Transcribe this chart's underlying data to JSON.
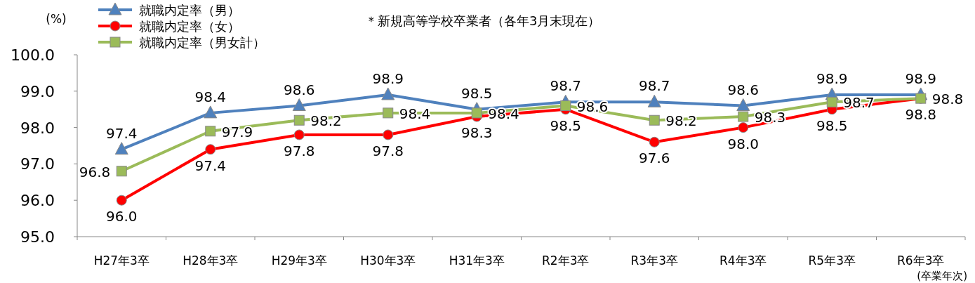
{
  "chart_data": {
    "type": "line",
    "ylabel": "(%)",
    "categories": [
      "H27年3卒",
      "H28年3卒",
      "H29年3卒",
      "H30年3卒",
      "H31年3卒",
      "R2年3卒",
      "R3年3卒",
      "R4年3卒",
      "R5年3卒",
      "R6年3卒"
    ],
    "series": [
      {
        "name": "就職内定率（男）",
        "color": "#4f81bd",
        "marker": "triangle",
        "values": [
          97.4,
          98.4,
          98.6,
          98.9,
          98.5,
          98.7,
          98.7,
          98.6,
          98.9,
          98.9
        ]
      },
      {
        "name": "就職内定率（女）",
        "color": "#ff0000",
        "marker": "circle",
        "values": [
          96.0,
          97.4,
          97.8,
          97.8,
          98.3,
          98.5,
          97.6,
          98.0,
          98.5,
          98.8
        ],
        "value_labels": [
          "96.0",
          "97.4",
          "97.8",
          "97.8",
          "98.3",
          "98.5",
          "97.6",
          "98.0",
          "98.5",
          "98.8"
        ]
      },
      {
        "name": "就職内定率（男女計）",
        "color": "#9bbb59",
        "marker": "square",
        "values": [
          96.8,
          97.9,
          98.2,
          98.4,
          98.4,
          98.6,
          98.2,
          98.3,
          98.7,
          98.8
        ]
      }
    ],
    "ylim": [
      95,
      100
    ],
    "yticks": [
      {
        "value": 95,
        "label": "95.0"
      },
      {
        "value": 96,
        "label": "96.0"
      },
      {
        "value": 97,
        "label": "97.0"
      },
      {
        "value": 98,
        "label": "98.0"
      },
      {
        "value": 99,
        "label": "99.0"
      },
      {
        "value": 100,
        "label": "100.0"
      }
    ],
    "data_labels": true,
    "grid": false,
    "legend": "top left",
    "annotations": [
      "＊新規高等学校卒業者（各年3月末現在）",
      "(卒業年次)"
    ]
  }
}
